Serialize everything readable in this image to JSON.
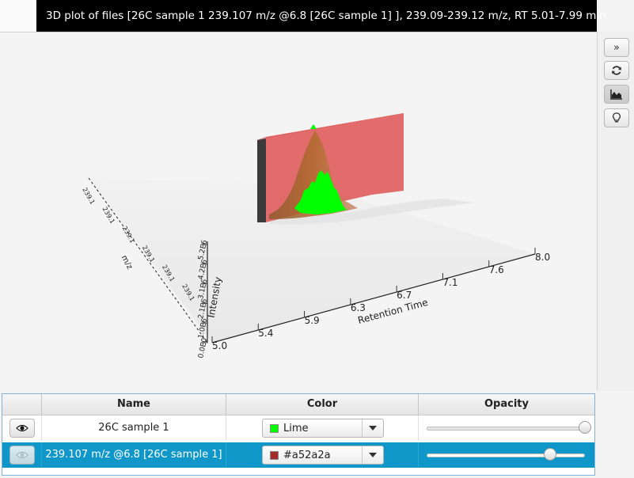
{
  "window": {
    "title": "3D plot of files [26C sample 1 239.107 m/z @6.8 [26C sample 1] ], 239.09-239.12 m/z, RT 5.01-7.99 min"
  },
  "toolbar": {
    "buttons": [
      {
        "name": "collapse",
        "icon": "double-chevron-right-icon"
      },
      {
        "name": "refresh",
        "icon": "refresh-icon"
      },
      {
        "name": "area-chart",
        "icon": "area-chart-icon",
        "active": true
      },
      {
        "name": "light",
        "icon": "lightbulb-icon"
      }
    ]
  },
  "plot": {
    "x_axis_label": "Retention Time",
    "x_ticks": [
      "5.0",
      "5.4",
      "5.9",
      "6.3",
      "6.7",
      "7.1",
      "7.6",
      "8.0"
    ],
    "y_axis_label": "Intensity",
    "y_ticks": [
      "0.0E0",
      "1.0E6",
      "2.1E6",
      "3.1E6",
      "4.2E6",
      "5.2E6"
    ],
    "z_axis_label": "m/z",
    "z_ticks": [
      "239.1",
      "239.1",
      "239.1",
      "239.1",
      "239.1",
      "239.1"
    ],
    "series_colors": [
      "#00ff00",
      "#a52a2a"
    ]
  },
  "table": {
    "headers": {
      "visibility": "",
      "name": "Name",
      "color": "Color",
      "opacity": "Opacity"
    },
    "rows": [
      {
        "name": "26C sample 1",
        "color_label": "Lime",
        "color": "#00ff00",
        "opacity": 1.0,
        "selected": false
      },
      {
        "name": "239.107 m/z @6.8 [26C sample 1]",
        "color_label": "#a52a2a",
        "color": "#a52a2a",
        "opacity": 0.78,
        "selected": true
      }
    ]
  }
}
